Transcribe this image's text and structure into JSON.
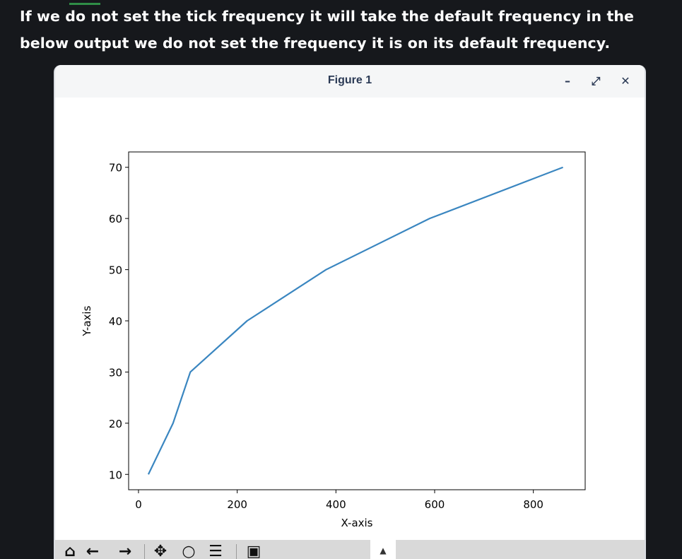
{
  "article": {
    "paragraph": "If we do not set the tick frequency it will take the default frequency in the below output we do not set the frequency it is on its default frequency."
  },
  "window": {
    "title": "Figure 1",
    "controls": {
      "minimize": "–",
      "maximize": "⤢",
      "close": "✕"
    }
  },
  "toolbar": {
    "icons": [
      "home-icon",
      "back-arrow-icon",
      "forward-arrow-icon",
      "pan-icon",
      "zoom-icon",
      "configure-subplots-icon",
      "save-icon"
    ],
    "position_toggle": "▲"
  },
  "colors": {
    "page_bg": "#16181c",
    "line": "#3a86c0",
    "axes": "#000000"
  },
  "chart_data": {
    "type": "line",
    "x": [
      20,
      70,
      105,
      220,
      380,
      590,
      860
    ],
    "y": [
      10,
      20,
      30,
      40,
      50,
      60,
      70
    ],
    "xlabel": "X-axis",
    "ylabel": "Y-axis",
    "xlim": [
      -20,
      905
    ],
    "ylim": [
      7,
      73
    ],
    "xticks": [
      0,
      200,
      400,
      600,
      800
    ],
    "yticks": [
      10,
      20,
      30,
      40,
      50,
      60,
      70
    ],
    "grid": false
  }
}
